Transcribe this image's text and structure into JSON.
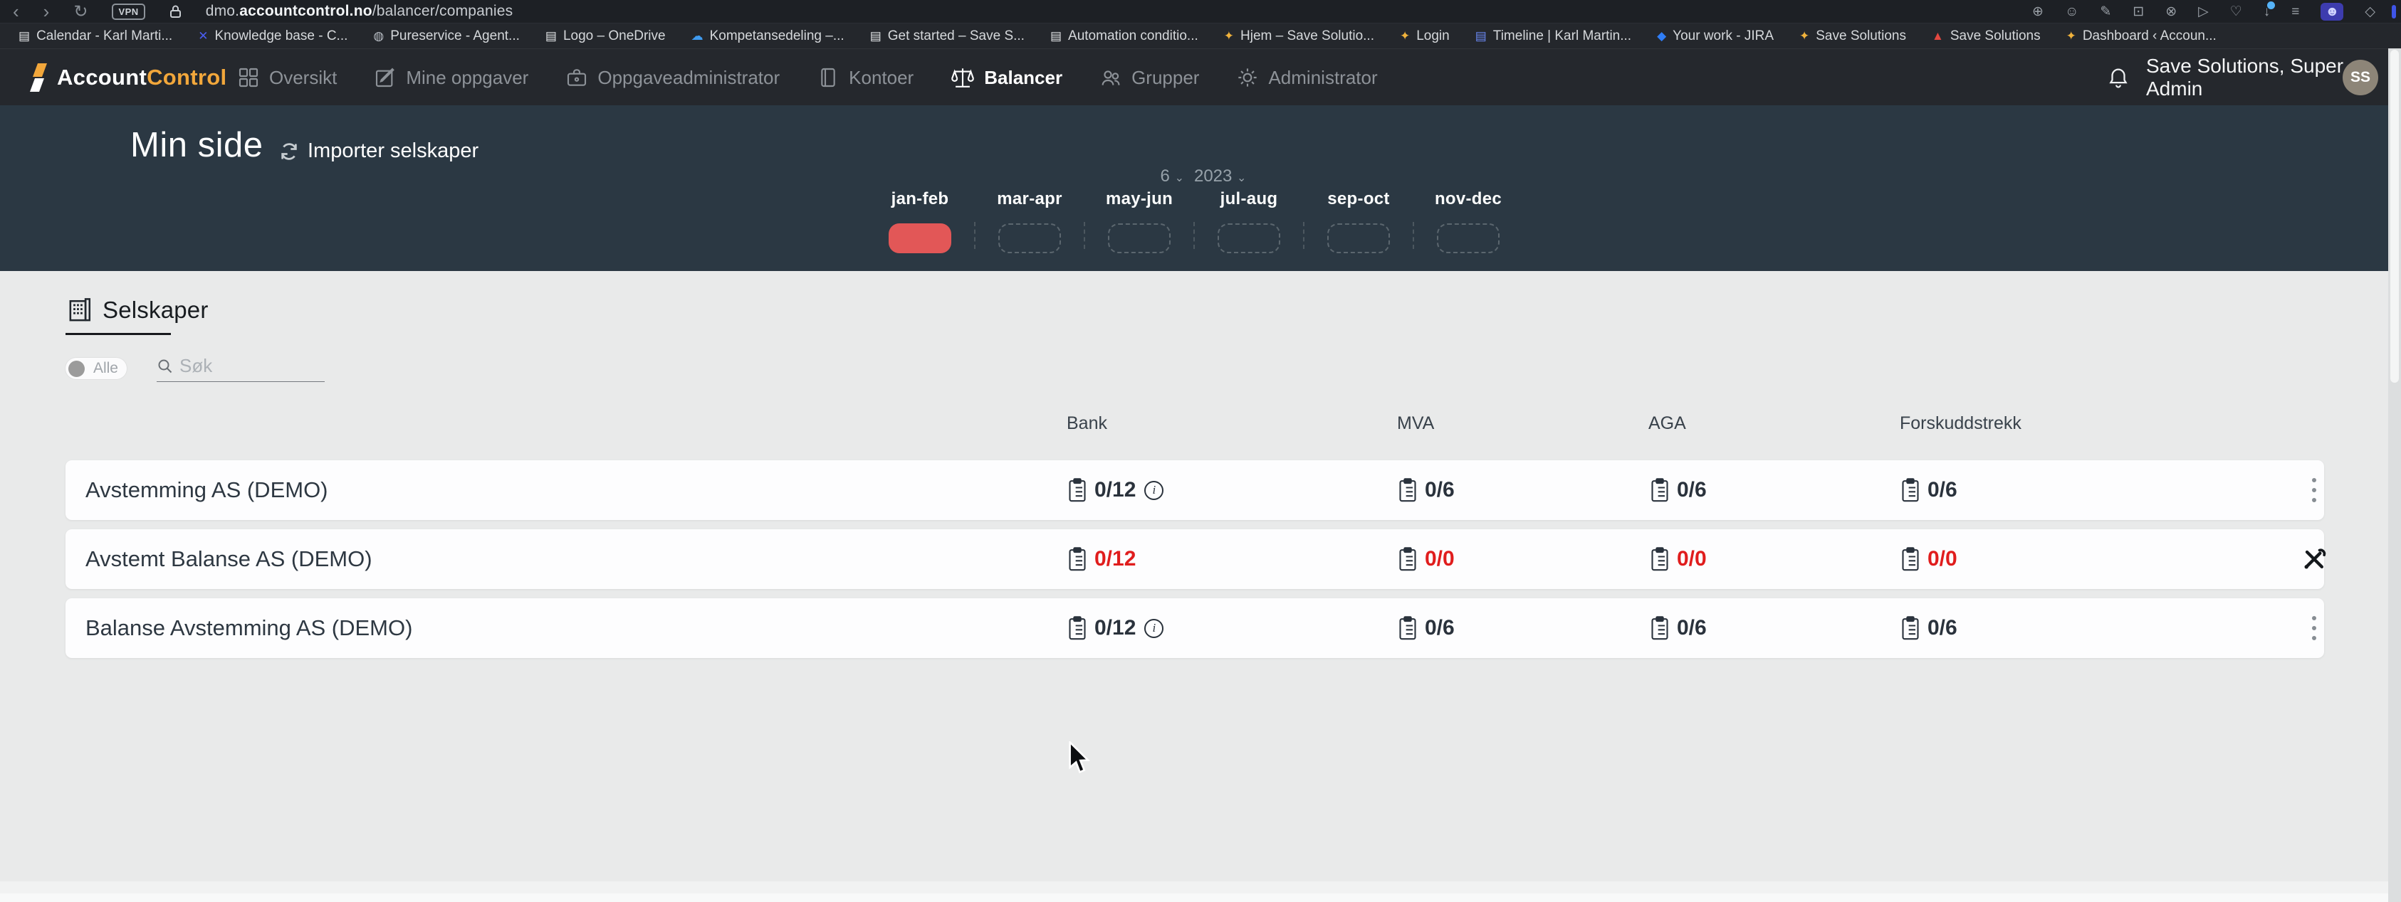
{
  "browser": {
    "back_glyph": "‹",
    "forward_glyph": "›",
    "reload_glyph": "↻",
    "vpn_label": "VPN",
    "url": {
      "subdomain": "dmo.",
      "domain": "accountcontrol.no",
      "path": "/balancer/companies"
    },
    "bookmarks": [
      {
        "icon": "document-icon",
        "glyph": "▤",
        "color": "#e6e8ea",
        "label": "Calendar - Karl Marti..."
      },
      {
        "icon": "knowledge-base-icon",
        "glyph": "✕",
        "color": "#4a5df0",
        "label": "Knowledge base - C..."
      },
      {
        "icon": "pureservice-icon",
        "glyph": "◍",
        "color": "#b9bec5",
        "label": "Pureservice - Agent..."
      },
      {
        "icon": "document-icon",
        "glyph": "▤",
        "color": "#e6e8ea",
        "label": "Logo – OneDrive"
      },
      {
        "icon": "onedrive-cloud-icon",
        "glyph": "☁",
        "color": "#3f9bf0",
        "label": "Kompetansedeling –..."
      },
      {
        "icon": "document-icon",
        "glyph": "▤",
        "color": "#e6e8ea",
        "label": "Get started – Save S..."
      },
      {
        "icon": "document-icon",
        "glyph": "▤",
        "color": "#e6e8ea",
        "label": "Automation conditio..."
      },
      {
        "icon": "save-logo-icon",
        "glyph": "✦",
        "color": "#f0b23c",
        "label": "Hjem – Save Solutio..."
      },
      {
        "icon": "save-logo-icon",
        "glyph": "✦",
        "color": "#f0b23c",
        "label": "Login"
      },
      {
        "icon": "timeline-icon",
        "glyph": "▤",
        "color": "#6b8af5",
        "label": "Timeline | Karl Martin..."
      },
      {
        "icon": "jira-icon",
        "glyph": "◆",
        "color": "#2f7df6",
        "label": "Your work - JIRA"
      },
      {
        "icon": "save-logo-icon",
        "glyph": "✦",
        "color": "#f0b23c",
        "label": "Save Solutions"
      },
      {
        "icon": "triangle-logo-icon",
        "glyph": "▲",
        "color": "#e34840",
        "label": "Save Solutions"
      },
      {
        "icon": "save-logo-icon",
        "glyph": "✦",
        "color": "#f0b23c",
        "label": "Dashboard ‹ Accoun..."
      }
    ],
    "toolbar": [
      {
        "name": "zoom-icon",
        "glyph": "⊕"
      },
      {
        "name": "emoji-icon",
        "glyph": "☺"
      },
      {
        "name": "share-icon",
        "glyph": "✎"
      },
      {
        "name": "camera-icon",
        "glyph": "⊡"
      },
      {
        "name": "shield-block-icon",
        "glyph": "⊗"
      },
      {
        "name": "send-icon",
        "glyph": "▷"
      },
      {
        "name": "heart-icon",
        "glyph": "♡"
      },
      {
        "name": "download-icon",
        "glyph": "↓",
        "badge": true
      },
      {
        "name": "sliders-icon",
        "glyph": "≡"
      },
      {
        "name": "profile-icon",
        "glyph": "☻",
        "boxed": true
      },
      {
        "name": "extensions-icon",
        "glyph": "◇"
      }
    ]
  },
  "navbar": {
    "brand_account": "Account",
    "brand_control": "Control",
    "items": [
      {
        "label": "Oversikt",
        "active": false
      },
      {
        "label": "Mine oppgaver",
        "active": false
      },
      {
        "label": "Oppgaveadministrator",
        "active": false
      },
      {
        "label": "Kontoer",
        "active": false
      },
      {
        "label": "Balancer",
        "active": true
      },
      {
        "label": "Grupper",
        "active": false
      },
      {
        "label": "Administrator",
        "active": false
      }
    ],
    "user_label": "Save Solutions, Super Admin",
    "avatar_initials": "SS"
  },
  "hero": {
    "title": "Min side",
    "import_label": "Importer selskaper",
    "period_count": "6",
    "period_year": "2023",
    "chevron": "⌄",
    "segments": [
      {
        "label": "jan-feb",
        "filled": true
      },
      {
        "label": "mar-apr",
        "filled": false
      },
      {
        "label": "may-jun",
        "filled": false
      },
      {
        "label": "jul-aug",
        "filled": false
      },
      {
        "label": "sep-oct",
        "filled": false
      },
      {
        "label": "nov-dec",
        "filled": false
      }
    ]
  },
  "content": {
    "section_title": "Selskaper",
    "toggle_label": "Alle",
    "search_placeholder": "Søk",
    "columns": [
      "Bank",
      "MVA",
      "AGA",
      "Forskuddstrekk"
    ],
    "rows": [
      {
        "name": "Avstemming AS (DEMO)",
        "bank": "0/12",
        "bank_info": true,
        "mva": "0/6",
        "aga": "0/6",
        "forskuddstrekk": "0/6",
        "alert": false,
        "action": "menu"
      },
      {
        "name": "Avstemt Balanse AS (DEMO)",
        "bank": "0/12",
        "bank_info": false,
        "mva": "0/0",
        "aga": "0/0",
        "forskuddstrekk": "0/0",
        "alert": true,
        "action": "tools"
      },
      {
        "name": "Balanse Avstemming AS (DEMO)",
        "bank": "0/12",
        "bank_info": true,
        "mva": "0/6",
        "aga": "0/6",
        "forskuddstrekk": "0/6",
        "alert": false,
        "action": "menu"
      }
    ]
  },
  "colors": {
    "navbar_bg": "#25282d",
    "hero_bg": "#2b3843",
    "accent_red_pill": "#e25757",
    "alert_text": "#e01d1d",
    "brand_orange": "#f2a73b",
    "main_bg": "#e9eaea"
  }
}
